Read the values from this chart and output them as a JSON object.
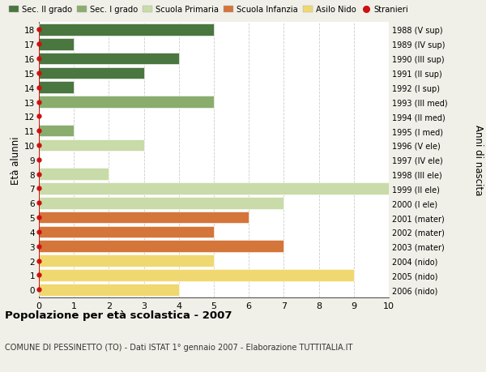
{
  "ages": [
    18,
    17,
    16,
    15,
    14,
    13,
    12,
    11,
    10,
    9,
    8,
    7,
    6,
    5,
    4,
    3,
    2,
    1,
    0
  ],
  "years": [
    "1988 (V sup)",
    "1989 (IV sup)",
    "1990 (III sup)",
    "1991 (II sup)",
    "1992 (I sup)",
    "1993 (III med)",
    "1994 (II med)",
    "1995 (I med)",
    "1996 (V ele)",
    "1997 (IV ele)",
    "1998 (III ele)",
    "1999 (II ele)",
    "2000 (I ele)",
    "2001 (mater)",
    "2002 (mater)",
    "2003 (mater)",
    "2004 (nido)",
    "2005 (nido)",
    "2006 (nido)"
  ],
  "bar_values": [
    5,
    1,
    4,
    3,
    1,
    5,
    0,
    1,
    3,
    0,
    2,
    10,
    7,
    6,
    5,
    7,
    5,
    9,
    4
  ],
  "bar_colors": [
    "#4a7640",
    "#4a7640",
    "#4a7640",
    "#4a7640",
    "#4a7640",
    "#8aad6e",
    "#8aad6e",
    "#8aad6e",
    "#c8dba8",
    "#c8dba8",
    "#c8dba8",
    "#c8dba8",
    "#c8dba8",
    "#d4753a",
    "#d4753a",
    "#d4753a",
    "#f0d870",
    "#f0d870",
    "#f0d870"
  ],
  "legend_labels": [
    "Sec. II grado",
    "Sec. I grado",
    "Scuola Primaria",
    "Scuola Infanzia",
    "Asilo Nido",
    "Stranieri"
  ],
  "legend_colors": [
    "#4a7640",
    "#8aad6e",
    "#c8dba8",
    "#d4753a",
    "#f0d870",
    "#cc1111"
  ],
  "title": "Popolazione per età scolastica - 2007",
  "subtitle": "COMUNE DI PESSINETTO (TO) - Dati ISTAT 1° gennaio 2007 - Elaborazione TUTTITALIA.IT",
  "ylabel_left": "Età alunni",
  "ylabel_right": "Anni di nascita",
  "xlim": [
    0,
    10
  ],
  "ylim": [
    -0.55,
    18.55
  ],
  "bg_color": "#f0f0e8",
  "plot_bg_color": "#ffffff",
  "grid_color": "#cccccc",
  "bar_height": 0.82,
  "stranieri_color": "#cc1111"
}
